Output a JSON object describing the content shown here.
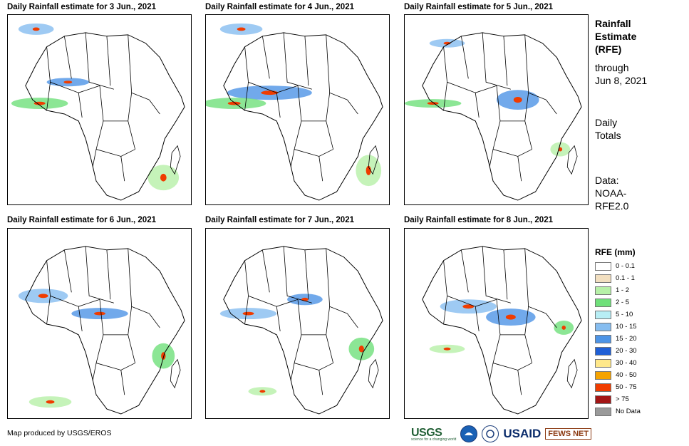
{
  "panels": [
    {
      "title": "Daily Rainfall estimate for 3 Jun., 2021"
    },
    {
      "title": "Daily Rainfall estimate for 4 Jun., 2021"
    },
    {
      "title": "Daily Rainfall estimate for 5 Jun., 2021"
    },
    {
      "title": "Daily Rainfall estimate for 6 Jun., 2021"
    },
    {
      "title": "Daily Rainfall estimate for 7 Jun., 2021"
    },
    {
      "title": "Daily Rainfall estimate for 8 Jun., 2021"
    }
  ],
  "side": {
    "title_lines": [
      "Rainfall",
      "Estimate",
      "(RFE)"
    ],
    "through_lines": [
      "through",
      "Jun 8, 2021"
    ],
    "totals_lines": [
      "Daily",
      "Totals"
    ],
    "data_lines": [
      "Data:",
      "NOAA-",
      "RFE2.0"
    ]
  },
  "legend": {
    "title": "RFE (mm)",
    "items": [
      {
        "label": "0 - 0.1",
        "color": "#ffffff"
      },
      {
        "label": "0.1 - 1",
        "color": "#f2dfc0"
      },
      {
        "label": "1 - 2",
        "color": "#b7f0a8"
      },
      {
        "label": "2 - 5",
        "color": "#6fe07a"
      },
      {
        "label": "5 - 10",
        "color": "#b8eef5"
      },
      {
        "label": "10 - 15",
        "color": "#86bdf0"
      },
      {
        "label": "15 - 20",
        "color": "#4d94e6"
      },
      {
        "label": "20 - 30",
        "color": "#1f5fd6"
      },
      {
        "label": "30 - 40",
        "color": "#ffe88a"
      },
      {
        "label": "40 - 50",
        "color": "#f5a300"
      },
      {
        "label": "50 - 75",
        "color": "#f03c00"
      },
      {
        "label": "> 75",
        "color": "#a31515"
      },
      {
        "label": "No Data",
        "color": "#9a9a9a"
      }
    ]
  },
  "credit": "Map produced by USGS/EROS",
  "logos": {
    "usgs": "USGS",
    "usgs_tagline": "science for a changing world",
    "usaid": "USAID",
    "fews": "FEWS NET"
  }
}
